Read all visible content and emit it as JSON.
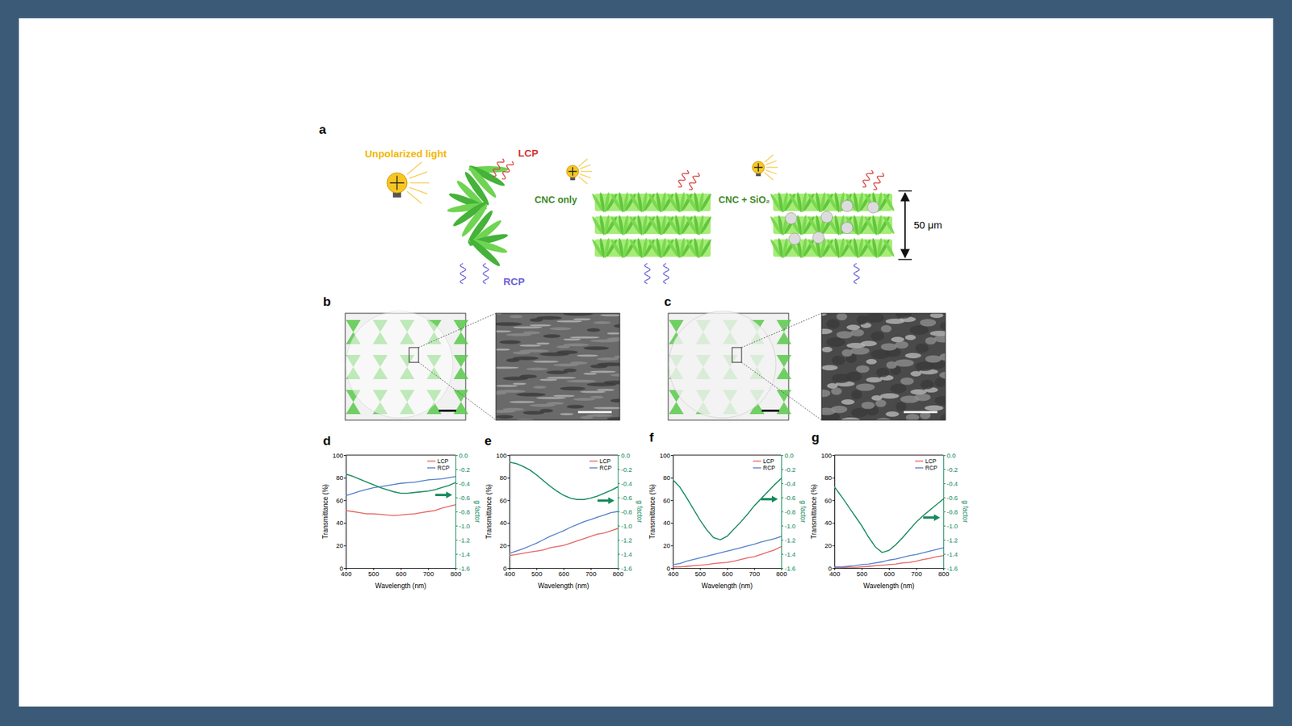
{
  "schematic": {
    "panel": "a",
    "light_label": "Unpolarized light",
    "lcp_label": "LCP",
    "rcp_label": "RCP",
    "cnc_only_label": "CNC only",
    "cnc_sio2_label": "CNC + SiO₂",
    "thickness_label": "50 μm"
  },
  "images": [
    {
      "panel": "b"
    },
    {
      "panel": "c"
    }
  ],
  "chart_data": [
    {
      "panel": "d",
      "type": "line",
      "x_label": "Wavelength (nm)",
      "y_label": "Transmittance (%)",
      "y2_label": "g factor",
      "x": [
        400,
        425,
        450,
        475,
        500,
        525,
        550,
        575,
        600,
        625,
        650,
        675,
        700,
        725,
        750,
        775,
        800
      ],
      "xlim": [
        400,
        800
      ],
      "xticks": [
        400,
        500,
        600,
        700,
        800
      ],
      "ylim": [
        0,
        100
      ],
      "yticks": [
        0,
        20,
        40,
        60,
        80,
        100
      ],
      "y2lim": [
        -1.6,
        0
      ],
      "y2ticks": [
        {
          "value": 0,
          "label": "0.0"
        },
        -0.2,
        -0.4,
        -0.6,
        -0.8,
        {
          "value": -1,
          "label": "-1.0"
        },
        -1.2,
        -1.4,
        -1.6
      ],
      "legend": "upper right",
      "series": [
        {
          "name": "LCP",
          "color": "#e0504c",
          "values": [
            51,
            50,
            49,
            48,
            48,
            47.5,
            47,
            46.5,
            47,
            47.5,
            48,
            49,
            50,
            51,
            53,
            54.5,
            56
          ]
        },
        {
          "name": "RCP",
          "color": "#3a6fc4",
          "values": [
            64,
            66,
            68,
            69.5,
            71,
            72,
            73,
            74,
            75,
            75.5,
            76,
            77,
            78,
            78.5,
            79,
            80,
            81
          ]
        },
        {
          "color": "#168a5c",
          "axis": "y2",
          "values": [
            -0.27,
            -0.3,
            -0.34,
            -0.38,
            -0.42,
            -0.46,
            -0.49,
            -0.52,
            -0.54,
            -0.54,
            -0.53,
            -0.52,
            -0.51,
            -0.49,
            -0.46,
            -0.43,
            -0.39
          ]
        }
      ]
    },
    {
      "panel": "e",
      "type": "line",
      "x_label": "Wavelength (nm)",
      "y_label": "Transmittance (%)",
      "y2_label": "g factor",
      "x": [
        400,
        425,
        450,
        475,
        500,
        525,
        550,
        575,
        600,
        625,
        650,
        675,
        700,
        725,
        750,
        775,
        800
      ],
      "xlim": [
        400,
        800
      ],
      "xticks": [
        400,
        500,
        600,
        700,
        800
      ],
      "ylim": [
        0,
        100
      ],
      "yticks": [
        0,
        20,
        40,
        60,
        80,
        100
      ],
      "y2lim": [
        -1.6,
        0
      ],
      "y2ticks": [
        {
          "value": 0,
          "label": "0.0"
        },
        -0.2,
        -0.4,
        -0.6,
        -0.8,
        {
          "value": -1,
          "label": "-1.0"
        },
        -1.2,
        -1.4,
        -1.6
      ],
      "legend": "upper right",
      "series": [
        {
          "name": "LCP",
          "color": "#e0504c",
          "values": [
            11,
            12,
            13,
            14,
            15,
            16,
            18,
            19,
            20,
            22,
            24,
            26,
            28,
            30,
            31,
            33,
            35
          ]
        },
        {
          "name": "RCP",
          "color": "#3a6fc4",
          "values": [
            13,
            15,
            17,
            19.5,
            22,
            25,
            28,
            30.5,
            33,
            36,
            38.5,
            41,
            43,
            45,
            47,
            49,
            50
          ]
        },
        {
          "color": "#168a5c",
          "axis": "y2",
          "values": [
            -0.1,
            -0.12,
            -0.16,
            -0.21,
            -0.28,
            -0.36,
            -0.44,
            -0.51,
            -0.57,
            -0.61,
            -0.63,
            -0.63,
            -0.61,
            -0.58,
            -0.54,
            -0.5,
            -0.45
          ]
        }
      ]
    },
    {
      "panel": "f",
      "type": "line",
      "x_label": "Wavelength (nm)",
      "y_label": "Transmittance (%)",
      "y2_label": "g factor",
      "x": [
        400,
        425,
        450,
        475,
        500,
        525,
        550,
        575,
        600,
        625,
        650,
        675,
        700,
        725,
        750,
        775,
        800
      ],
      "xlim": [
        400,
        800
      ],
      "xticks": [
        400,
        500,
        600,
        700,
        800
      ],
      "ylim": [
        0,
        100
      ],
      "yticks": [
        0,
        20,
        40,
        60,
        80,
        100
      ],
      "y2lim": [
        -1.6,
        0
      ],
      "y2ticks": [
        {
          "value": 0,
          "label": "0.0"
        },
        -0.2,
        -0.4,
        -0.6,
        -0.8,
        {
          "value": -1,
          "label": "-1.0"
        },
        -1.2,
        -1.4,
        -1.6
      ],
      "legend": "upper right",
      "series": [
        {
          "name": "LCP",
          "color": "#e0504c",
          "values": [
            1,
            1,
            1.5,
            2,
            2.5,
            3,
            4,
            4.5,
            5,
            6,
            7.5,
            9,
            10,
            12,
            14,
            16,
            19
          ]
        },
        {
          "name": "RCP",
          "color": "#3a6fc4",
          "values": [
            3,
            4,
            6,
            7.5,
            9,
            10.5,
            12,
            13.5,
            15,
            16.5,
            18,
            19.5,
            21,
            23,
            24.5,
            26,
            28
          ]
        },
        {
          "color": "#168a5c",
          "axis": "y2",
          "values": [
            -0.35,
            -0.45,
            -0.6,
            -0.76,
            -0.92,
            -1.06,
            -1.17,
            -1.2,
            -1.15,
            -1.05,
            -0.95,
            -0.84,
            -0.72,
            -0.62,
            -0.52,
            -0.42,
            -0.33
          ]
        }
      ]
    },
    {
      "panel": "g",
      "type": "line",
      "x_label": "Wavelength (nm)",
      "y_label": "Transmittance (%)",
      "y2_label": "g factor",
      "x": [
        400,
        425,
        450,
        475,
        500,
        525,
        550,
        575,
        600,
        625,
        650,
        675,
        700,
        725,
        750,
        775,
        800
      ],
      "xlim": [
        400,
        800
      ],
      "xticks": [
        400,
        500,
        600,
        700,
        800
      ],
      "ylim": [
        0,
        100
      ],
      "yticks": [
        0,
        20,
        40,
        60,
        80,
        100
      ],
      "y2lim": [
        -1.6,
        0
      ],
      "y2ticks": [
        {
          "value": 0,
          "label": "0.0"
        },
        -0.2,
        -0.4,
        -0.6,
        -0.8,
        {
          "value": -1,
          "label": "-1.0"
        },
        -1.2,
        -1.4,
        -1.6
      ],
      "legend": "upper right",
      "series": [
        {
          "name": "LCP",
          "color": "#e0504c",
          "values": [
            0,
            0,
            0.5,
            0.5,
            1,
            1.5,
            2,
            2.5,
            3,
            3.5,
            4.5,
            5,
            6,
            7.5,
            8.5,
            10,
            11
          ]
        },
        {
          "name": "RCP",
          "color": "#3a6fc4",
          "values": [
            1,
            1,
            1.5,
            2,
            3,
            3.5,
            4.5,
            5.5,
            7,
            8,
            9.5,
            11,
            12,
            13.5,
            15,
            16.5,
            18
          ]
        },
        {
          "color": "#168a5c",
          "axis": "y2",
          "values": [
            -0.45,
            -0.58,
            -0.72,
            -0.86,
            -1.0,
            -1.16,
            -1.3,
            -1.38,
            -1.35,
            -1.27,
            -1.17,
            -1.06,
            -0.95,
            -0.86,
            -0.78,
            -0.7,
            -0.62
          ]
        }
      ]
    }
  ]
}
